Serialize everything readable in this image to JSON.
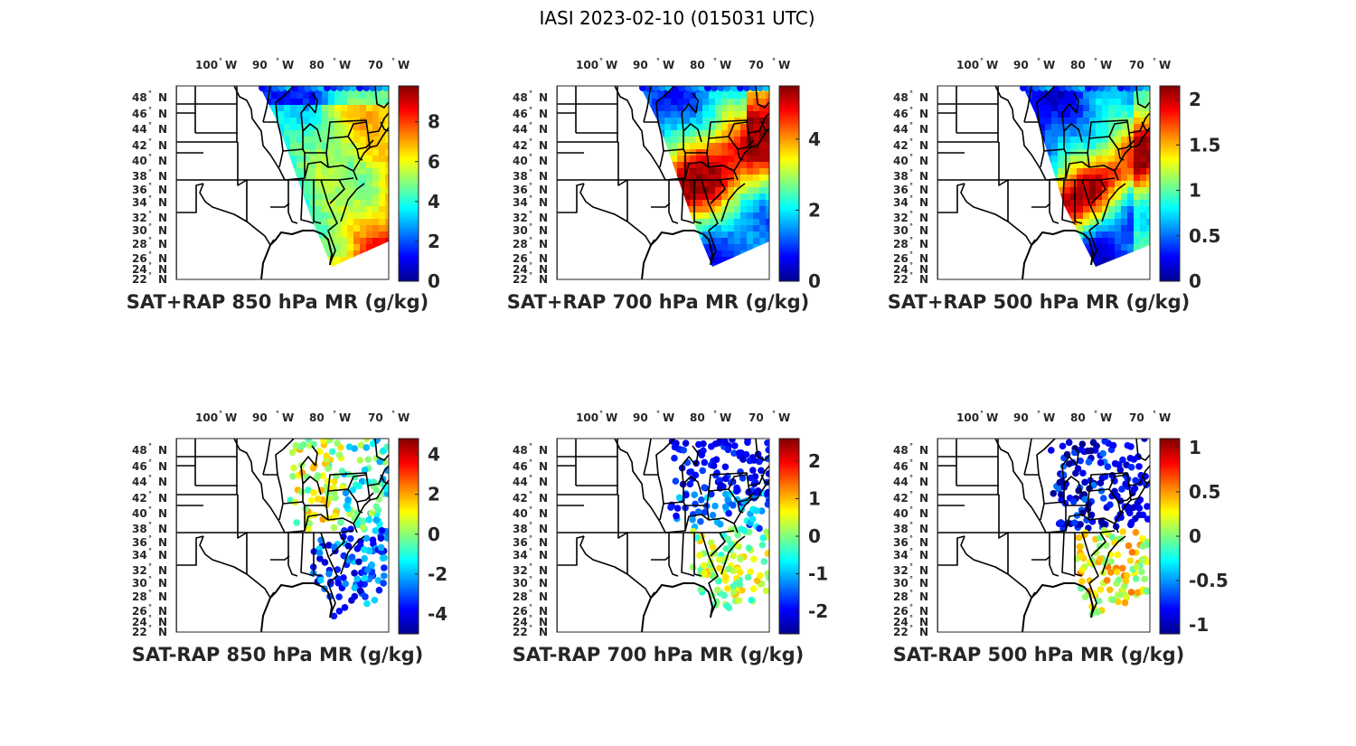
{
  "figure_title": "IASI 2023-02-10 (015031 UTC)",
  "colors": {
    "jet": [
      "#00008f",
      "#0000ff",
      "#0080ff",
      "#00ffff",
      "#80ff80",
      "#ffff00",
      "#ff8000",
      "#ff0000",
      "#800000"
    ],
    "land": "#ffffff",
    "borders": "#000000"
  },
  "chart_data": [
    {
      "type": "map",
      "title": "SAT+RAP 850 hPa MR (g/kg)",
      "lon_labels": [
        "100",
        "90",
        "80",
        "70"
      ],
      "lon_hemi": "W",
      "lat_labels": [
        "48",
        "46",
        "44",
        "42",
        "40",
        "38",
        "36",
        "34",
        "32",
        "30",
        "28",
        "26",
        "24",
        "22"
      ],
      "lat_hemi": "N",
      "colorbar": {
        "min": 0,
        "max": 9.8,
        "ticks": [
          "0",
          "2",
          "4",
          "6",
          "8"
        ],
        "tick_values": [
          0,
          2,
          4,
          6,
          8
        ]
      },
      "swath": "composite"
    },
    {
      "type": "map",
      "title": "SAT+RAP 700 hPa MR (g/kg)",
      "lon_labels": [
        "100",
        "90",
        "80",
        "70"
      ],
      "lon_hemi": "W",
      "lat_labels": [
        "48",
        "46",
        "44",
        "42",
        "40",
        "38",
        "36",
        "34",
        "32",
        "30",
        "28",
        "26",
        "24",
        "22"
      ],
      "lat_hemi": "N",
      "colorbar": {
        "min": 0,
        "max": 5.5,
        "ticks": [
          "0",
          "2",
          "4"
        ],
        "tick_values": [
          0,
          2,
          4
        ]
      },
      "swath": "composite"
    },
    {
      "type": "map",
      "title": "SAT+RAP 500 hPa MR (g/kg)",
      "lon_labels": [
        "100",
        "90",
        "80",
        "70"
      ],
      "lon_hemi": "W",
      "lat_labels": [
        "48",
        "46",
        "44",
        "42",
        "40",
        "38",
        "36",
        "34",
        "32",
        "30",
        "28",
        "26",
        "24",
        "22"
      ],
      "lat_hemi": "N",
      "colorbar": {
        "min": 0,
        "max": 2.15,
        "ticks": [
          "0",
          "0.5",
          "1",
          "1.5",
          "2"
        ],
        "tick_values": [
          0,
          0.5,
          1,
          1.5,
          2
        ]
      },
      "swath": "composite"
    },
    {
      "type": "map",
      "title": "SAT-RAP 850 hPa MR (g/kg)",
      "lon_labels": [
        "100",
        "90",
        "80",
        "70"
      ],
      "lon_hemi": "W",
      "lat_labels": [
        "48",
        "46",
        "44",
        "42",
        "40",
        "38",
        "36",
        "34",
        "32",
        "30",
        "28",
        "26",
        "24",
        "22"
      ],
      "lat_hemi": "N",
      "colorbar": {
        "min": -5,
        "max": 4.8,
        "ticks": [
          "-4",
          "-2",
          "0",
          "2",
          "4"
        ],
        "tick_values": [
          -4,
          -2,
          0,
          2,
          4
        ]
      },
      "swath": "difference"
    },
    {
      "type": "map",
      "title": "SAT-RAP 700 hPa MR (g/kg)",
      "lon_labels": [
        "100",
        "90",
        "80",
        "70"
      ],
      "lon_hemi": "W",
      "lat_labels": [
        "48",
        "46",
        "44",
        "42",
        "40",
        "38",
        "36",
        "34",
        "32",
        "30",
        "28",
        "26",
        "24",
        "22"
      ],
      "lat_hemi": "N",
      "colorbar": {
        "min": -2.6,
        "max": 2.6,
        "ticks": [
          "-2",
          "-1",
          "0",
          "1",
          "2"
        ],
        "tick_values": [
          -2,
          -1,
          0,
          1,
          2
        ]
      },
      "swath": "difference"
    },
    {
      "type": "map",
      "title": "SAT-RAP 500 hPa MR (g/kg)",
      "lon_labels": [
        "100",
        "90",
        "80",
        "70"
      ],
      "lon_hemi": "W",
      "lat_labels": [
        "48",
        "46",
        "44",
        "42",
        "40",
        "38",
        "36",
        "34",
        "32",
        "30",
        "28",
        "26",
        "24",
        "22"
      ],
      "lat_hemi": "N",
      "colorbar": {
        "min": -1.1,
        "max": 1.1,
        "ticks": [
          "-1",
          "-0.5",
          "0",
          "0.5",
          "1"
        ],
        "tick_values": [
          -1,
          -0.5,
          0,
          0.5,
          1
        ]
      },
      "swath": "difference"
    }
  ]
}
